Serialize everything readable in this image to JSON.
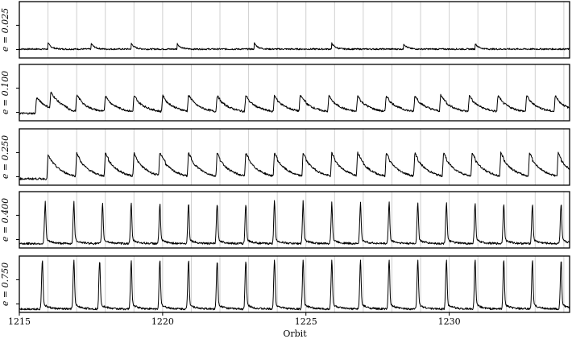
{
  "chart_data": {
    "type": "line",
    "xlabel": "Orbit",
    "xlim": [
      1215,
      1234.2
    ],
    "xticks": [
      "1215",
      "1220",
      "1225",
      "1230"
    ],
    "xtick_values": [
      1215,
      1220,
      1225,
      1230
    ],
    "grid": "vertical lines at each orbit",
    "panels": [
      {
        "label": "e = 0.025",
        "peak": 0.25,
        "base": 0.13,
        "profile": "flat",
        "events": [
          1216.0,
          1217.5,
          1218.9,
          1220.5,
          1223.2,
          1225.9,
          1228.4,
          1230.9
        ]
      },
      {
        "label": "e = 0.100",
        "peak": 0.42,
        "base": 0.1,
        "profile": "sawtooth",
        "events": [
          1215.6,
          1216.1,
          1217.0,
          1218.0,
          1219.0,
          1220.0,
          1220.9,
          1221.9,
          1222.9,
          1223.9,
          1224.8,
          1225.8,
          1226.8,
          1227.8,
          1228.8,
          1229.7,
          1230.7,
          1231.7,
          1232.7,
          1233.7
        ]
      },
      {
        "label": "e = 0.250",
        "peak": 0.55,
        "base": 0.08,
        "profile": "sawtooth",
        "events": [
          1216.0,
          1217.0,
          1218.0,
          1219.0,
          1219.9,
          1220.9,
          1221.9,
          1222.9,
          1223.9,
          1224.9,
          1225.9,
          1226.8,
          1227.8,
          1228.8,
          1229.8,
          1230.8,
          1231.8,
          1232.8,
          1233.8
        ]
      },
      {
        "label": "e = 0.400",
        "peak": 0.8,
        "base": 0.04,
        "profile": "spike",
        "events": [
          1215.9,
          1216.9,
          1217.9,
          1218.9,
          1219.9,
          1220.9,
          1221.9,
          1222.9,
          1223.9,
          1224.9,
          1225.9,
          1226.9,
          1227.9,
          1228.9,
          1229.9,
          1230.9,
          1231.9,
          1232.9,
          1233.9
        ]
      },
      {
        "label": "e = 0.750",
        "peak": 0.95,
        "base": 0.02,
        "profile": "spike",
        "events": [
          1215.8,
          1216.9,
          1217.8,
          1218.9,
          1219.9,
          1220.9,
          1221.9,
          1222.9,
          1223.9,
          1224.9,
          1225.9,
          1226.9,
          1227.9,
          1228.9,
          1229.9,
          1230.9,
          1231.9,
          1232.9,
          1233.9
        ]
      }
    ]
  }
}
